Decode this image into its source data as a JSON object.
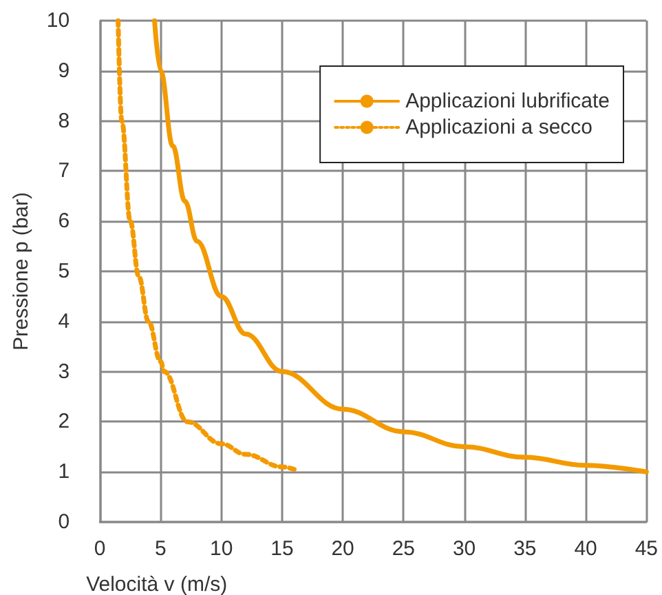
{
  "chart_data": {
    "type": "line",
    "xlabel": "Velocità v (m/s)",
    "ylabel": "Pressione p (bar)",
    "xlim": [
      0,
      45
    ],
    "xticks": [
      0,
      5,
      10,
      15,
      20,
      25,
      30,
      35,
      40,
      45
    ],
    "ylim": [
      0,
      10
    ],
    "yticks": [
      0,
      1,
      2,
      3,
      4,
      5,
      6,
      7,
      8,
      9,
      10
    ],
    "grid": true,
    "legend": "top right",
    "marker": "none",
    "series": [
      {
        "name": "Applicazioni lubrificate",
        "color": "#f39a00",
        "line_style": "solid",
        "x": [
          4.5,
          5,
          6,
          7,
          8,
          10,
          12,
          15,
          20,
          25,
          30,
          35,
          40,
          45
        ],
        "values": [
          10,
          9,
          7.5,
          6.4,
          5.6,
          4.5,
          3.75,
          3,
          2.25,
          1.8,
          1.5,
          1.29,
          1.13,
          1
        ]
      },
      {
        "name": "Applicazioni a secco",
        "color": "#f39a00",
        "line_style": "dotted",
        "x": [
          1.5,
          1.8,
          2.5,
          3.2,
          4,
          5,
          5.3,
          7.2,
          10,
          12,
          15,
          16
        ],
        "values": [
          10,
          8,
          6,
          4.9,
          4,
          3.2,
          3,
          2,
          1.56,
          1.35,
          1.1,
          1.05
        ]
      }
    ]
  }
}
